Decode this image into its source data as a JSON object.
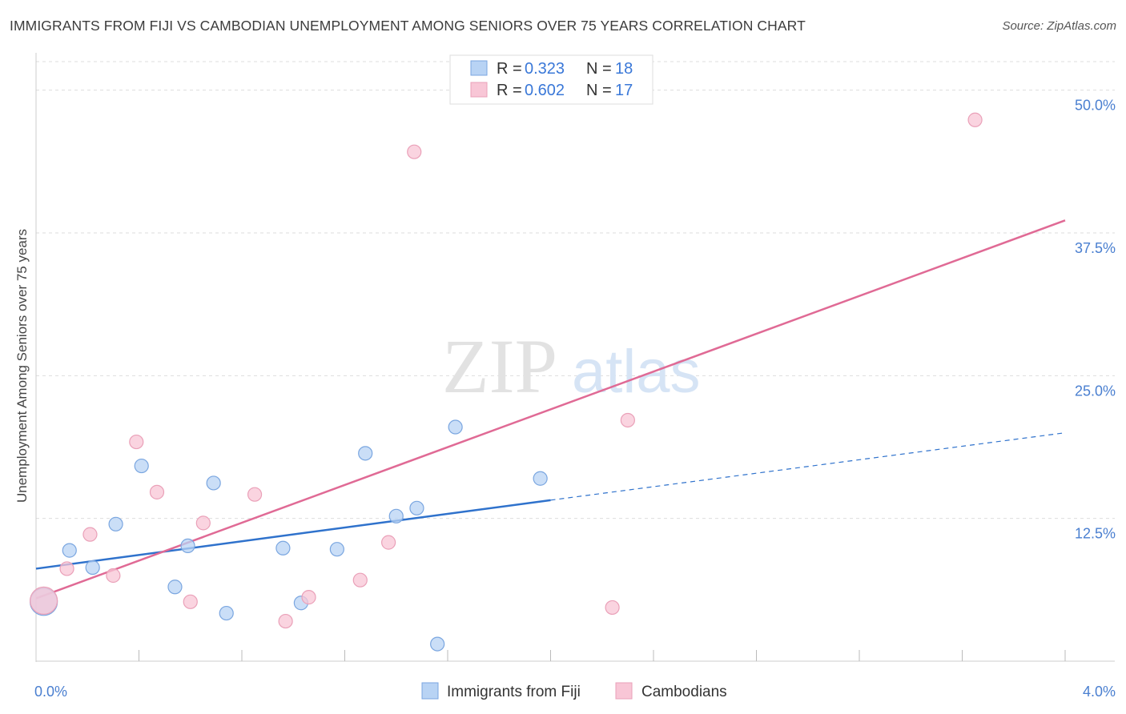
{
  "header": {
    "title": "IMMIGRANTS FROM FIJI VS CAMBODIAN UNEMPLOYMENT AMONG SENIORS OVER 75 YEARS CORRELATION CHART",
    "source": "Source: ZipAtlas.com"
  },
  "watermark": {
    "zip": "ZIP",
    "atlas": "atlas"
  },
  "colors": {
    "fiji_fill": "#b8d3f4",
    "fiji_stroke": "#7aa6e0",
    "fiji_line": "#2f72cc",
    "cam_fill": "#f8c6d6",
    "cam_stroke": "#eaa0b8",
    "cam_line": "#e06a95",
    "grid": "#dddddd",
    "tick_text": "#4a7fd0"
  },
  "legend": {
    "rows": [
      {
        "r_label": "R =",
        "r_value": "0.323",
        "n_label": "N =",
        "n_value": "18"
      },
      {
        "r_label": "R =",
        "r_value": "0.602",
        "n_label": "N =",
        "n_value": "17"
      }
    ]
  },
  "chart_data": {
    "type": "scatter",
    "title": "IMMIGRANTS FROM FIJI VS CAMBODIAN UNEMPLOYMENT AMONG SENIORS OVER 75 YEARS CORRELATION CHART",
    "xlabel": "",
    "ylabel": "Unemployment Among Seniors over 75 years",
    "xlim": [
      0,
      4.0
    ],
    "ylim": [
      0,
      52.5
    ],
    "x_tick_labels": [
      "0.0%",
      "4.0%"
    ],
    "y_ticks": [
      12.5,
      25.0,
      37.5,
      50.0
    ],
    "y_tick_labels": [
      "12.5%",
      "25.0%",
      "37.5%",
      "50.0%"
    ],
    "series": [
      {
        "name": "Immigrants from Fiji",
        "r": 0.323,
        "n": 18,
        "points": [
          {
            "x": 0.03,
            "y": 5.2,
            "big": true
          },
          {
            "x": 0.13,
            "y": 9.7
          },
          {
            "x": 0.22,
            "y": 8.2
          },
          {
            "x": 0.31,
            "y": 12.0
          },
          {
            "x": 0.41,
            "y": 17.1
          },
          {
            "x": 0.54,
            "y": 6.5
          },
          {
            "x": 0.59,
            "y": 10.1
          },
          {
            "x": 0.69,
            "y": 15.6
          },
          {
            "x": 0.74,
            "y": 4.2
          },
          {
            "x": 0.96,
            "y": 9.9
          },
          {
            "x": 1.03,
            "y": 5.1
          },
          {
            "x": 1.17,
            "y": 9.8
          },
          {
            "x": 1.28,
            "y": 18.2
          },
          {
            "x": 1.4,
            "y": 12.7
          },
          {
            "x": 1.48,
            "y": 13.4
          },
          {
            "x": 1.56,
            "y": 1.5
          },
          {
            "x": 1.63,
            "y": 20.5
          },
          {
            "x": 1.96,
            "y": 16.0
          }
        ],
        "trend": {
          "x0": 0.0,
          "y0": 8.1,
          "x1": 2.0,
          "y1": 14.1,
          "dash_x1": 4.0,
          "dash_y1": 20.0
        }
      },
      {
        "name": "Cambodians",
        "r": 0.602,
        "n": 17,
        "points": [
          {
            "x": 0.03,
            "y": 5.3,
            "big": true
          },
          {
            "x": 0.12,
            "y": 8.1
          },
          {
            "x": 0.21,
            "y": 11.1
          },
          {
            "x": 0.3,
            "y": 7.5
          },
          {
            "x": 0.39,
            "y": 19.2
          },
          {
            "x": 0.47,
            "y": 14.8
          },
          {
            "x": 0.6,
            "y": 5.2
          },
          {
            "x": 0.65,
            "y": 12.1
          },
          {
            "x": 0.85,
            "y": 14.6
          },
          {
            "x": 0.97,
            "y": 3.5
          },
          {
            "x": 1.06,
            "y": 5.6
          },
          {
            "x": 1.26,
            "y": 7.1
          },
          {
            "x": 1.37,
            "y": 10.4
          },
          {
            "x": 1.47,
            "y": 44.6
          },
          {
            "x": 2.24,
            "y": 4.7
          },
          {
            "x": 2.3,
            "y": 21.1
          },
          {
            "x": 3.65,
            "y": 47.4
          }
        ],
        "trend": {
          "x0": 0.0,
          "y0": 5.5,
          "x1": 4.0,
          "y1": 38.6
        }
      }
    ]
  },
  "bottom_legend": {
    "items": [
      "Immigrants from Fiji",
      "Cambodians"
    ]
  }
}
